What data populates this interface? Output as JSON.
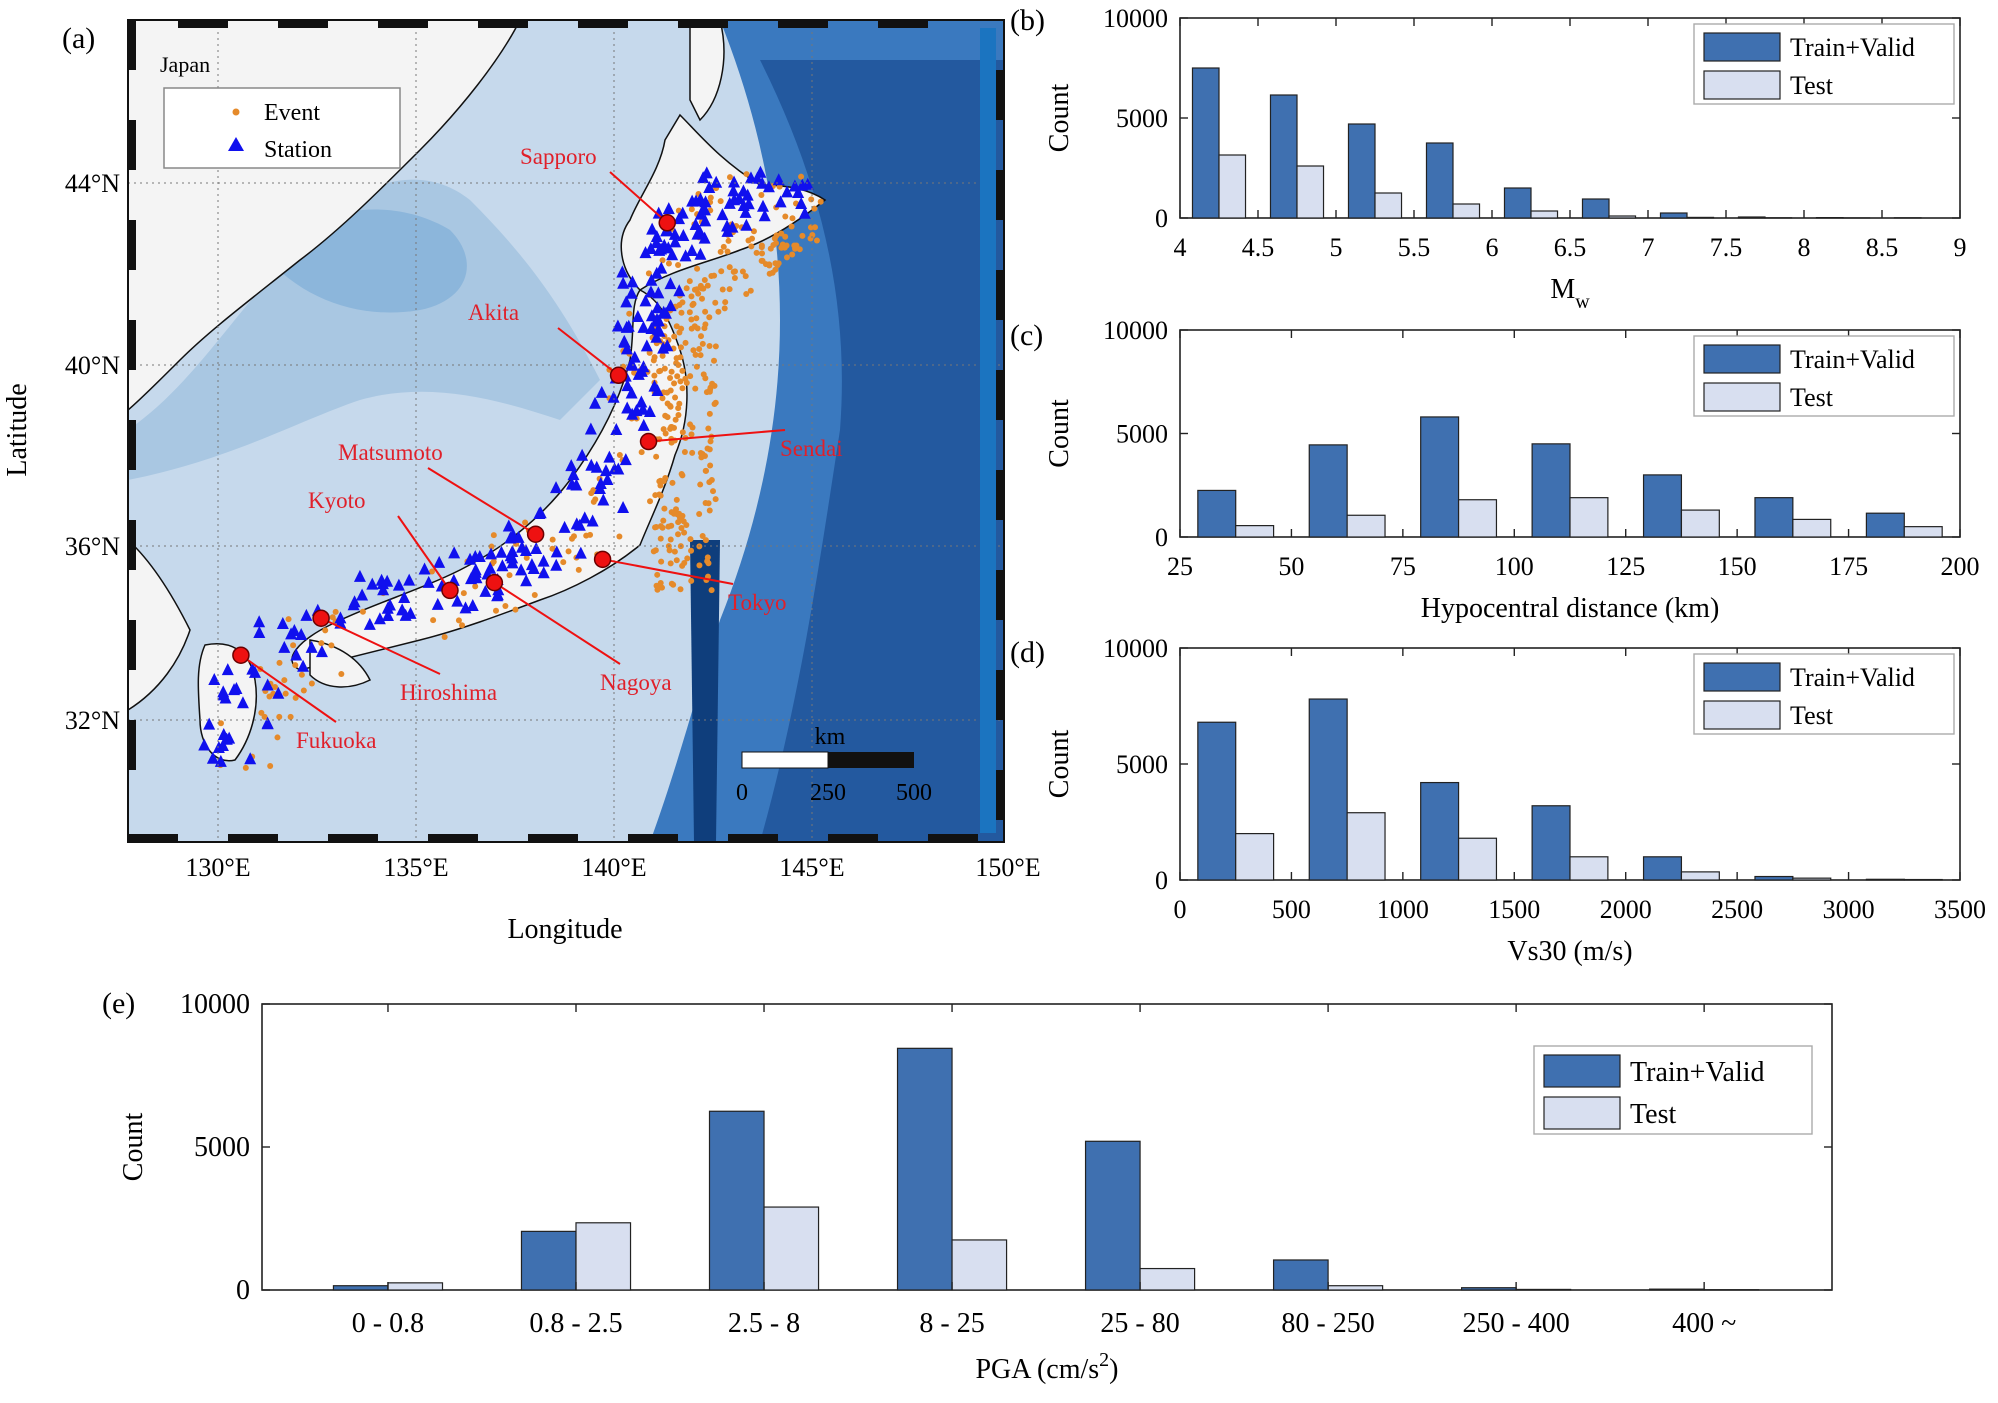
{
  "map": {
    "panel_label": "(a)",
    "region_label": "Japan",
    "legend": {
      "event_label": "Event",
      "station_label": "Station"
    },
    "xlabel": "Longitude",
    "ylabel": "Latitude",
    "lon_ticks": [
      "130°E",
      "135°E",
      "140°E",
      "145°E",
      "150°E"
    ],
    "lat_ticks": [
      "44°N",
      "40°N",
      "36°N",
      "32°N"
    ],
    "lon_range": [
      127.5,
      150
    ],
    "lat_range": [
      29.5,
      47.5
    ],
    "scalebar": {
      "unit": "km",
      "labels": [
        "0",
        "250",
        "500"
      ]
    },
    "cities": [
      {
        "name": "Sapporo",
        "lon": 141.35,
        "lat": 43.06
      },
      {
        "name": "Akita",
        "lon": 140.1,
        "lat": 39.72
      },
      {
        "name": "Sendai",
        "lon": 140.87,
        "lat": 38.27
      },
      {
        "name": "Matsumoto",
        "lon": 137.97,
        "lat": 36.24
      },
      {
        "name": "Kyoto",
        "lon": 135.77,
        "lat": 35.01
      },
      {
        "name": "Tokyo",
        "lon": 139.69,
        "lat": 35.69
      },
      {
        "name": "Nagoya",
        "lon": 136.91,
        "lat": 35.18
      },
      {
        "name": "Hiroshima",
        "lon": 132.46,
        "lat": 34.4
      },
      {
        "name": "Fukuoka",
        "lon": 130.4,
        "lat": 33.59
      }
    ],
    "colors": {
      "event": "#e58a2a",
      "station": "#1010ee",
      "city": "#ee1111",
      "city_label": "#e0202a",
      "land": "#f4f4f4"
    }
  },
  "chart_data": [
    {
      "panel": "(b)",
      "type": "bar",
      "x": [
        4.25,
        4.75,
        5.25,
        5.75,
        6.25,
        6.75,
        7.25,
        7.75,
        8.25,
        8.75
      ],
      "series": [
        {
          "name": "Train+Valid",
          "values": [
            7500,
            6150,
            4700,
            3750,
            1500,
            950,
            250,
            50,
            20,
            10
          ]
        },
        {
          "name": "Test",
          "values": [
            3150,
            2600,
            1250,
            700,
            350,
            100,
            30,
            10,
            5,
            0
          ]
        }
      ],
      "xlabel": "M",
      "xlabel_sub": "w",
      "ylabel": "Count",
      "xlim": [
        4,
        9
      ],
      "ylim": [
        0,
        10000
      ],
      "xticks": [
        "4",
        "4.5",
        "5",
        "5.5",
        "6",
        "6.5",
        "7",
        "7.5",
        "8",
        "8.5",
        "9"
      ],
      "yticks": [
        "0",
        "5000",
        "10000"
      ],
      "legend": "top-right"
    },
    {
      "panel": "(c)",
      "type": "bar",
      "x": [
        37.5,
        62.5,
        87.5,
        112.5,
        137.5,
        162.5,
        187.5
      ],
      "series": [
        {
          "name": "Train+Valid",
          "values": [
            2250,
            4450,
            5800,
            4500,
            3000,
            1900,
            1150
          ]
        },
        {
          "name": "Test",
          "values": [
            550,
            1050,
            1800,
            1900,
            1300,
            850,
            500
          ]
        }
      ],
      "xlabel": "Hypocentral distance (km)",
      "ylabel": "Count",
      "xlim": [
        25,
        200
      ],
      "ylim": [
        0,
        10000
      ],
      "xticks": [
        "25",
        "50",
        "75",
        "100",
        "125",
        "150",
        "175",
        "200"
      ],
      "yticks": [
        "0",
        "5000",
        "10000"
      ],
      "legend": "top-right"
    },
    {
      "panel": "(d)",
      "type": "bar",
      "x": [
        250,
        750,
        1250,
        1750,
        2250,
        2750,
        3250
      ],
      "series": [
        {
          "name": "Train+Valid",
          "values": [
            6800,
            7800,
            4200,
            3200,
            1000,
            150,
            30
          ]
        },
        {
          "name": "Test",
          "values": [
            2000,
            2900,
            1800,
            1000,
            350,
            80,
            20
          ]
        }
      ],
      "xlabel": "Vs30 (m/s)",
      "ylabel": "Count",
      "xlim": [
        0,
        3500
      ],
      "ylim": [
        0,
        10000
      ],
      "xticks": [
        "0",
        "500",
        "1000",
        "1500",
        "2000",
        "2500",
        "3000",
        "3500"
      ],
      "yticks": [
        "0",
        "5000",
        "10000"
      ],
      "legend": "top-right"
    },
    {
      "panel": "(e)",
      "type": "bar",
      "categories": [
        "0 - 0.8",
        "0.8 - 2.5",
        "2.5 - 8",
        "8 - 25",
        "25 - 80",
        "80 - 250",
        "250 - 400",
        "400 ~"
      ],
      "series": [
        {
          "name": "Train+Valid",
          "values": [
            150,
            2050,
            6250,
            8450,
            5200,
            1050,
            80,
            30
          ]
        },
        {
          "name": "Test",
          "values": [
            250,
            2350,
            2900,
            1750,
            750,
            150,
            20,
            10
          ]
        }
      ],
      "xlabel": "PGA (cm/s",
      "xlabel_sup": "2",
      "xlabel_end": ")",
      "ylabel": "Count",
      "ylim": [
        0,
        10000
      ],
      "yticks": [
        "0",
        "5000",
        "10000"
      ],
      "legend": "top-right"
    }
  ],
  "colors": {
    "train": "#3f70b0",
    "test": "#d8dff0",
    "edge": "#222222"
  }
}
